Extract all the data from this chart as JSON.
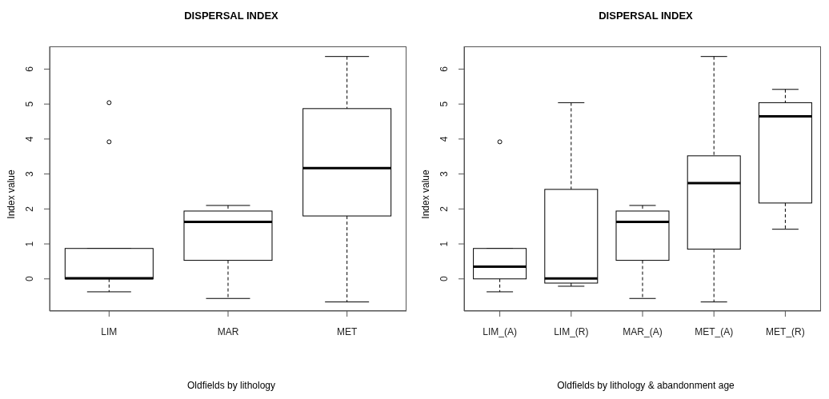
{
  "chart_data": [
    {
      "type": "box",
      "title": "DISPERSAL INDEX",
      "xlabel": "Oldfields by lithology",
      "ylabel": "Index value",
      "categories": [
        "LIM",
        "MAR",
        "MET"
      ],
      "ylim": [
        -0.92,
        6.65
      ],
      "yticks": [
        0,
        1,
        2,
        3,
        4,
        5,
        6
      ],
      "series": [
        {
          "color": "#000000",
          "boxes": [
            {
              "low": -0.37,
              "q1": 0,
              "median": 0.02,
              "q3": 0.87,
              "high": 0.87,
              "outliers": [
                5.04,
                3.92
              ]
            },
            {
              "low": -0.56,
              "q1": 0.53,
              "median": 1.63,
              "q3": 1.94,
              "high": 2.1
            },
            {
              "low": -0.66,
              "q1": 1.8,
              "median": 3.17,
              "q3": 4.87,
              "high": 6.36
            }
          ]
        }
      ]
    },
    {
      "type": "box",
      "title": "DISPERSAL INDEX",
      "xlabel": "Oldfields by lithology & abandonment age",
      "ylabel": "Index value",
      "categories": [
        "LIM_(A)",
        "LIM_(R)",
        "MAR_(A)",
        "MET_(A)",
        "MET_(R)"
      ],
      "ylim": [
        -0.92,
        6.65
      ],
      "yticks": [
        0,
        1,
        2,
        3,
        4,
        5,
        6
      ],
      "series": [
        {
          "color": "#000000",
          "boxes": [
            {
              "low": -0.37,
              "q1": 0,
              "median": 0.35,
              "q3": 0.87,
              "high": 0.87,
              "outliers": [
                3.92
              ]
            },
            {
              "low": -0.21,
              "q1": -0.12,
              "median": 0.01,
              "q3": 2.56,
              "high": 5.04
            },
            {
              "low": -0.56,
              "q1": 0.53,
              "median": 1.63,
              "q3": 1.94,
              "high": 2.1
            },
            {
              "low": -0.66,
              "q1": 0.85,
              "median": 2.74,
              "q3": 3.52,
              "high": 6.36
            },
            {
              "low": 1.42,
              "q1": 2.17,
              "median": 4.65,
              "q3": 5.04,
              "high": 5.42
            }
          ]
        }
      ]
    }
  ]
}
